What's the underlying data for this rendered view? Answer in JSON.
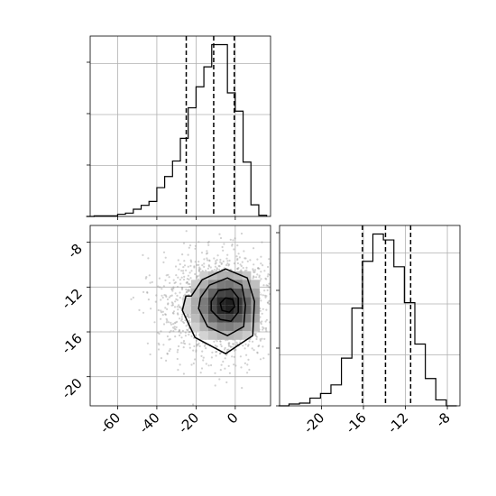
{
  "chart_data": [
    {
      "type": "histogram",
      "panel": "x-marginal",
      "x": [
        -74,
        -70,
        -66,
        -62,
        -58,
        -54,
        -50,
        -46,
        -42,
        -38,
        -34,
        -30,
        -26,
        -22,
        -18,
        -14,
        -10,
        -6,
        -2,
        2,
        6,
        10,
        14
      ],
      "counts": [
        0,
        1,
        1,
        1,
        4,
        6,
        13,
        20,
        27,
        52,
        72,
        100,
        141,
        196,
        234,
        270,
        310,
        310,
        223,
        190,
        98,
        21,
        2
      ],
      "xlim": [
        -74,
        18
      ],
      "quantile_lines": [
        -25,
        -11,
        -0.5
      ],
      "xticks": [
        -60,
        -40,
        -20,
        0
      ],
      "grid": true
    },
    {
      "type": "histogram",
      "panel": "y-marginal",
      "x": [
        -23.6,
        -22.6,
        -21.6,
        -20.6,
        -19.6,
        -18.6,
        -17.6,
        -16.6,
        -15.6,
        -14.6,
        -13.6,
        -12.6,
        -11.6,
        -10.6,
        -9.6,
        -8.6,
        -7.6
      ],
      "counts": [
        0,
        4,
        6,
        17,
        27,
        46,
        105,
        215,
        318,
        378,
        365,
        306,
        227,
        136,
        60,
        13,
        0
      ],
      "xlim": [
        -24,
        -6.8
      ],
      "quantile_lines": [
        -16.1,
        -13.9,
        -11.5
      ],
      "xticks": [
        "-20",
        "-16",
        "-12",
        "-8"
      ],
      "grid": true
    },
    {
      "type": "scatter-density",
      "panel": "joint",
      "xlim": [
        -74,
        18
      ],
      "ylim": [
        -22.6,
        -6.5
      ],
      "xticks": [
        "-60",
        "-40",
        "-20",
        "0"
      ],
      "yticks": [
        "-8",
        "-12",
        "-16",
        "-20"
      ],
      "density_peak": {
        "x": -4,
        "y": -13.6
      },
      "contour_levels": 4,
      "grid": true
    }
  ]
}
